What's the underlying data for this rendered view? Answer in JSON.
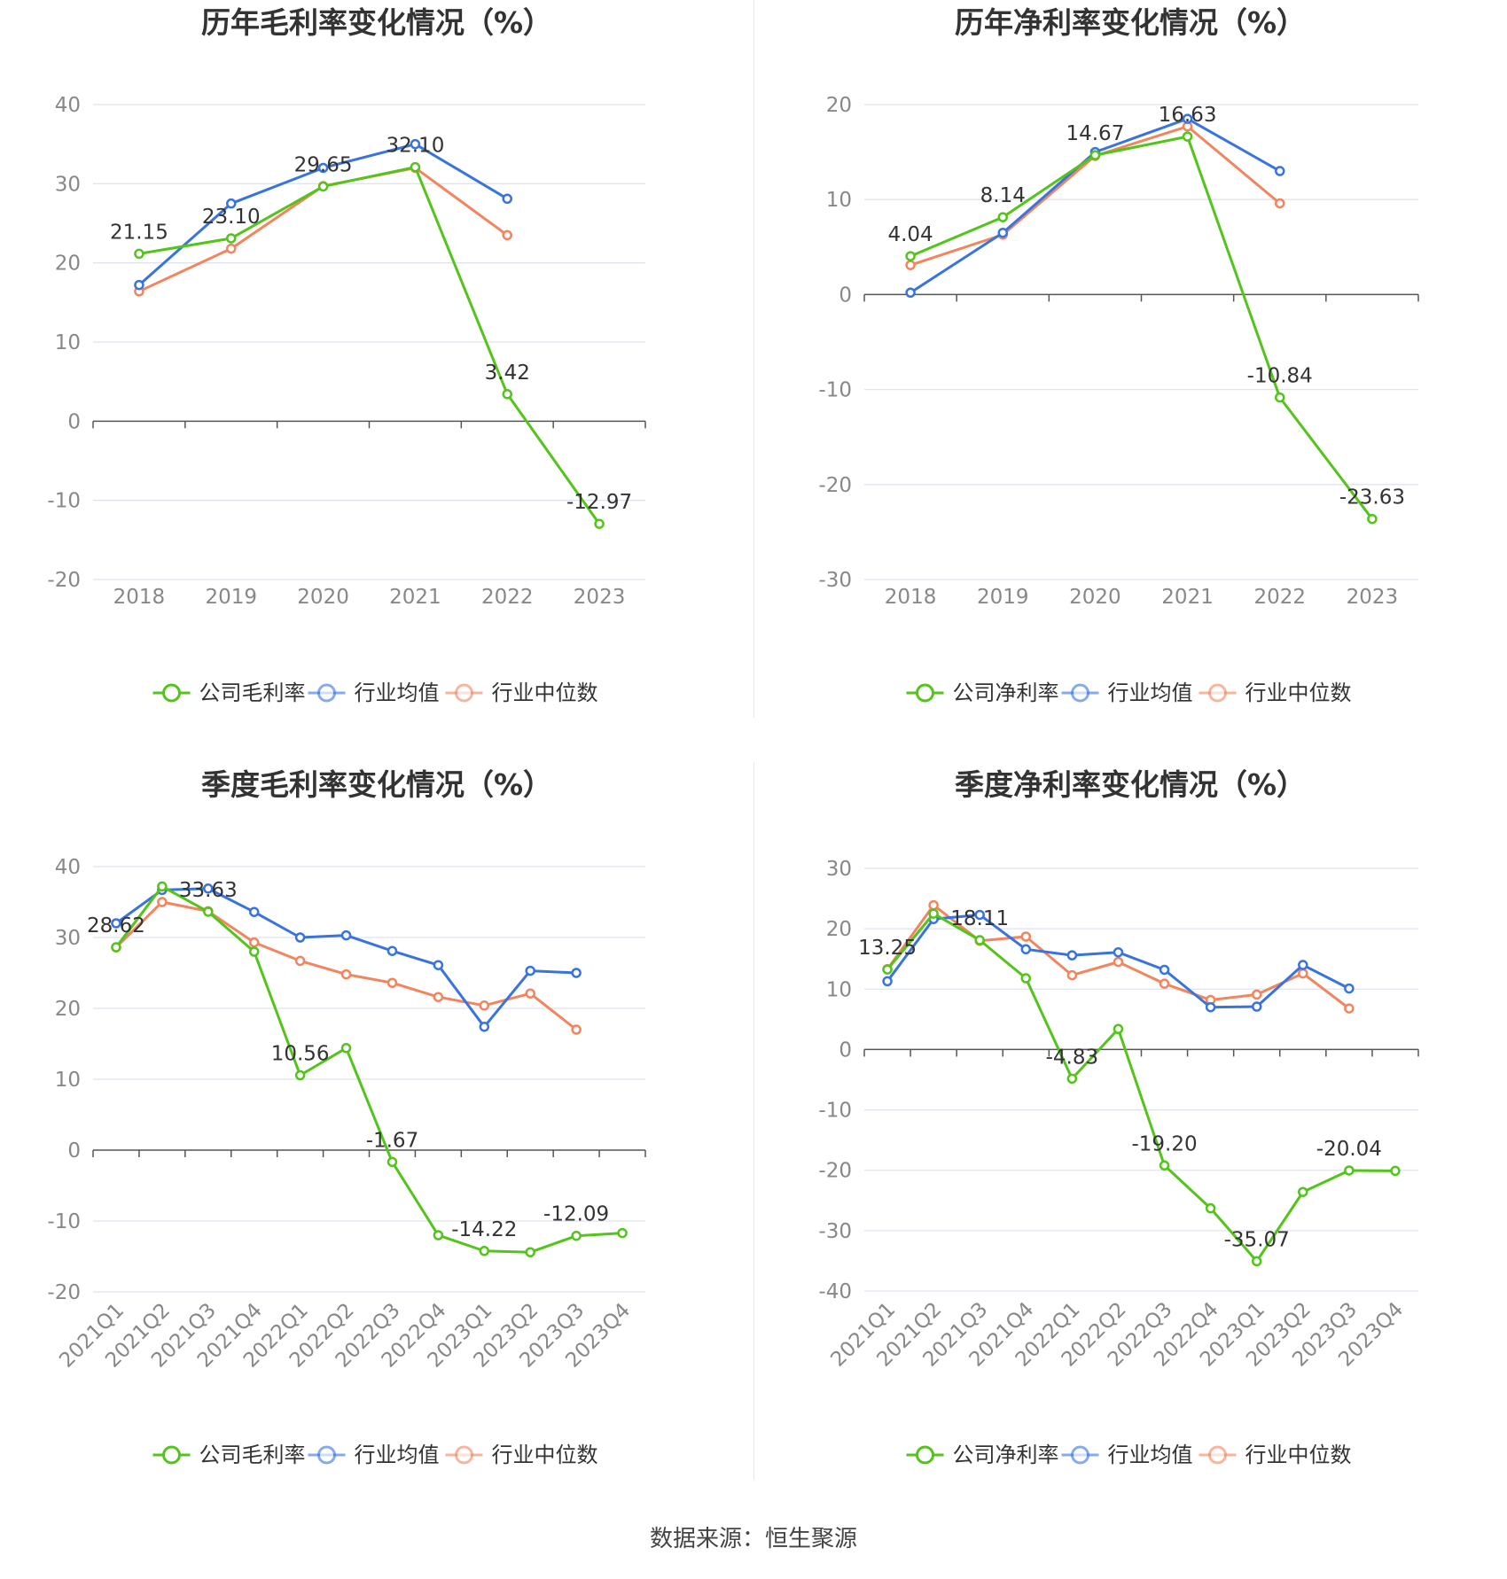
{
  "colors": {
    "company": "#52c41a",
    "avg": "#3873e0",
    "median": "#f2855e",
    "grid": "#e0e3ef",
    "axis": "#555555"
  },
  "source": "数据来源：恒生聚源",
  "chart_data": [
    {
      "type": "line",
      "title": "历年毛利率变化情况（%）",
      "categories": [
        "2018",
        "2019",
        "2020",
        "2021",
        "2022",
        "2023"
      ],
      "ylim": [
        -20,
        40
      ],
      "yticks": [
        40,
        30,
        20,
        10,
        0,
        -10,
        -20
      ],
      "grid": true,
      "legend_position": "bottom",
      "series": [
        {
          "name": "公司毛利率",
          "color": "#52c41a",
          "values": [
            21.15,
            23.1,
            29.65,
            32.1,
            3.42,
            -12.97
          ],
          "labels": [
            "21.15",
            "23.10",
            "29.65",
            "32.10",
            "3.42",
            "-12.97"
          ]
        },
        {
          "name": "行业均值",
          "color": "#3873e0",
          "values": [
            17.2,
            27.5,
            32.0,
            35.0,
            28.1,
            null
          ]
        },
        {
          "name": "行业中位数",
          "color": "#f2855e",
          "values": [
            16.4,
            21.8,
            29.7,
            32.0,
            23.5,
            null
          ]
        }
      ]
    },
    {
      "type": "line",
      "title": "历年净利率变化情况（%）",
      "categories": [
        "2018",
        "2019",
        "2020",
        "2021",
        "2022",
        "2023"
      ],
      "ylim": [
        -30,
        20
      ],
      "yticks": [
        20,
        10,
        0,
        -10,
        -20,
        -30
      ],
      "grid": true,
      "legend_position": "bottom",
      "series": [
        {
          "name": "公司净利率",
          "color": "#52c41a",
          "values": [
            4.04,
            8.14,
            14.67,
            16.63,
            -10.84,
            -23.63
          ],
          "labels": [
            "4.04",
            "8.14",
            "14.67",
            "16.63",
            "-10.84",
            "-23.63"
          ]
        },
        {
          "name": "行业均值",
          "color": "#3873e0",
          "values": [
            0.2,
            6.5,
            15.0,
            18.5,
            13.0,
            null
          ]
        },
        {
          "name": "行业中位数",
          "color": "#f2855e",
          "values": [
            3.1,
            6.3,
            14.6,
            17.7,
            9.6,
            null
          ]
        }
      ]
    },
    {
      "type": "line",
      "title": "季度毛利率变化情况（%）",
      "categories": [
        "2021Q1",
        "2021Q2",
        "2021Q3",
        "2021Q4",
        "2022Q1",
        "2022Q2",
        "2022Q3",
        "2022Q4",
        "2023Q1",
        "2023Q2",
        "2023Q3",
        "2023Q4"
      ],
      "ylim": [
        -20,
        40
      ],
      "yticks": [
        40,
        30,
        20,
        10,
        0,
        -10,
        -20
      ],
      "grid": true,
      "legend_position": "bottom",
      "series": [
        {
          "name": "公司毛利率",
          "color": "#52c41a",
          "values": [
            28.62,
            37.2,
            33.63,
            28.0,
            10.56,
            14.4,
            -1.67,
            -12.0,
            -14.22,
            -14.4,
            -12.09,
            -11.7
          ],
          "labels": [
            "28.62",
            "",
            "33.63",
            "",
            "10.56",
            "",
            "-1.67",
            "",
            "-14.22",
            "",
            "-12.09",
            ""
          ]
        },
        {
          "name": "行业均值",
          "color": "#3873e0",
          "values": [
            32.0,
            36.7,
            36.9,
            33.6,
            30.0,
            30.3,
            28.1,
            26.1,
            17.4,
            25.3,
            25.0,
            null
          ]
        },
        {
          "name": "行业中位数",
          "color": "#f2855e",
          "values": [
            28.6,
            35.0,
            33.7,
            29.3,
            26.7,
            24.8,
            23.6,
            21.6,
            20.4,
            22.1,
            17.0,
            null
          ]
        }
      ]
    },
    {
      "type": "line",
      "title": "季度净利率变化情况（%）",
      "categories": [
        "2021Q1",
        "2021Q2",
        "2021Q3",
        "2021Q4",
        "2022Q1",
        "2022Q2",
        "2022Q3",
        "2022Q4",
        "2023Q1",
        "2023Q2",
        "2023Q3",
        "2023Q4"
      ],
      "ylim": [
        -40,
        30
      ],
      "yticks": [
        30,
        20,
        10,
        0,
        -10,
        -20,
        -30,
        -40
      ],
      "grid": true,
      "legend_position": "bottom",
      "series": [
        {
          "name": "公司净利率",
          "color": "#52c41a",
          "values": [
            13.25,
            22.5,
            18.11,
            11.8,
            -4.83,
            3.4,
            -19.2,
            -26.3,
            -35.07,
            -23.6,
            -20.04,
            -20.1
          ],
          "labels": [
            "13.25",
            "",
            "18.11",
            "",
            "-4.83",
            "",
            "-19.20",
            "",
            "-35.07",
            "",
            "-20.04",
            ""
          ]
        },
        {
          "name": "行业均值",
          "color": "#3873e0",
          "values": [
            11.3,
            21.6,
            22.3,
            16.6,
            15.6,
            16.1,
            13.2,
            7.0,
            7.1,
            14.0,
            10.1,
            null
          ]
        },
        {
          "name": "行业中位数",
          "color": "#f2855e",
          "values": [
            13.3,
            23.9,
            18.0,
            18.7,
            12.3,
            14.5,
            10.9,
            8.2,
            9.1,
            12.6,
            6.8,
            null
          ]
        }
      ]
    }
  ]
}
